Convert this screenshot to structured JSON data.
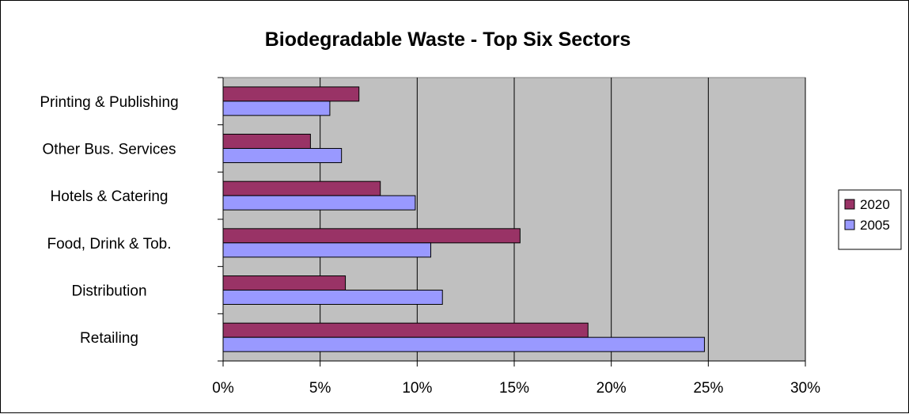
{
  "chart_data": {
    "type": "bar",
    "orientation": "horizontal",
    "title": "Biodegradable Waste - Top Six Sectors",
    "xlabel": "",
    "ylabel": "",
    "xlim": [
      0,
      30
    ],
    "x_ticks": [
      "0%",
      "5%",
      "10%",
      "15%",
      "20%",
      "25%",
      "30%"
    ],
    "tick_values": [
      0,
      5,
      10,
      15,
      20,
      25,
      30
    ],
    "unit": "%",
    "grid": true,
    "legend_position": "right",
    "categories": [
      "Printing & Publishing",
      "Other Bus. Services",
      "Hotels & Catering",
      "Food, Drink & Tob.",
      "Distribution",
      "Retailing"
    ],
    "series": [
      {
        "name": "2020",
        "color": "#993366",
        "values": [
          7.0,
          4.5,
          8.1,
          15.3,
          6.3,
          18.8
        ]
      },
      {
        "name": "2005",
        "color": "#9999ff",
        "values": [
          5.5,
          6.1,
          9.9,
          10.7,
          11.3,
          24.8
        ]
      }
    ],
    "plot_background": "#c0c0c0"
  }
}
